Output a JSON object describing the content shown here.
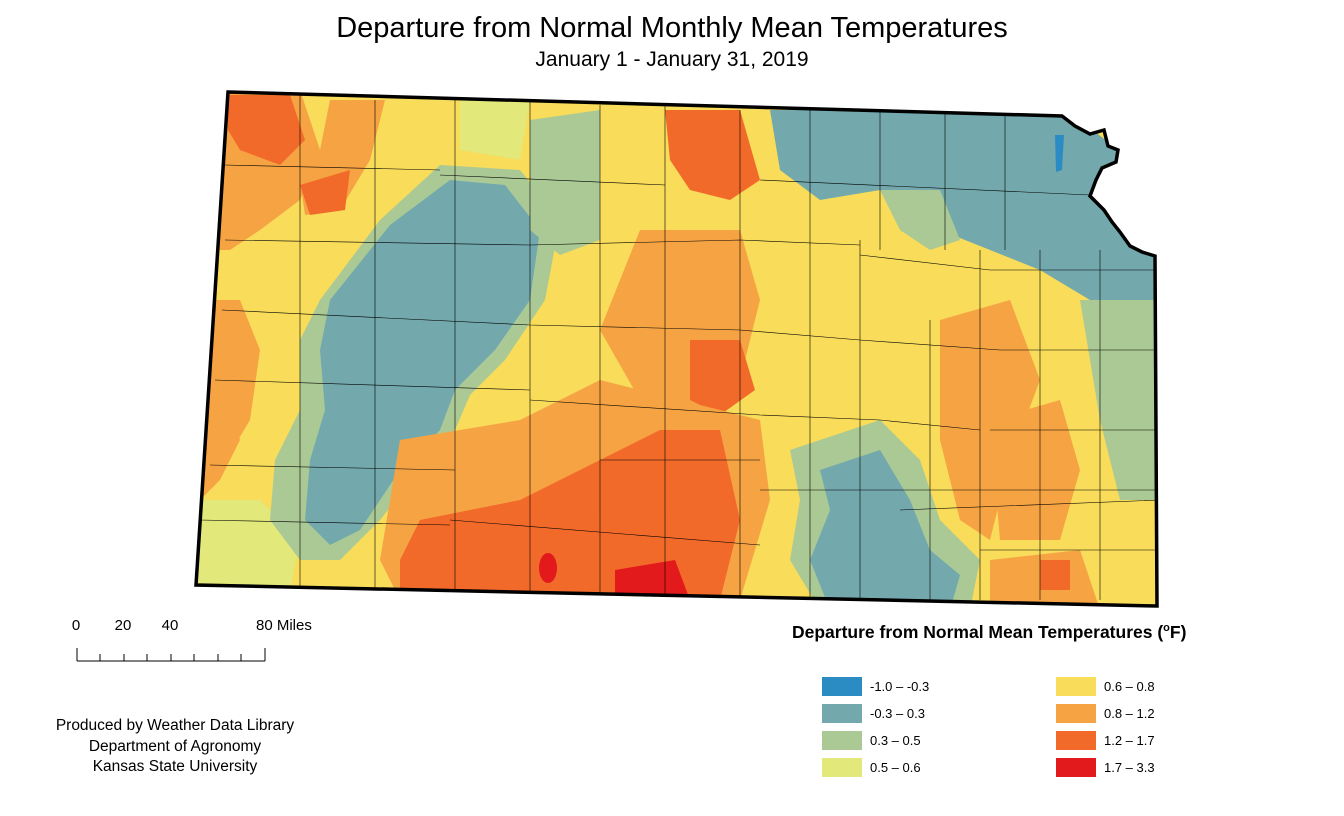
{
  "title": "Departure from Normal Monthly Mean Temperatures",
  "subtitle": "January 1 - January 31, 2019",
  "scale": {
    "ticks": [
      "0",
      "20",
      "40",
      "80 Miles"
    ]
  },
  "credits": {
    "line1": "Produced by Weather Data Library",
    "line2": "Department of Agronomy",
    "line3": "Kansas State University"
  },
  "legend": {
    "title": "Departure from Normal Mean Temperatures (",
    "unit_sup": "o",
    "unit_tail": "F)",
    "classes": [
      {
        "label": "-1.0 – -0.3",
        "color": "#2b8cc4"
      },
      {
        "label": "-0.3 – 0.3",
        "color": "#73a9ad"
      },
      {
        "label": "0.3 – 0.5",
        "color": "#abc994"
      },
      {
        "label": "0.5 – 0.6",
        "color": "#e2e87a"
      },
      {
        "label": "0.6 – 0.8",
        "color": "#f8dc5a"
      },
      {
        "label": "0.8 – 1.2",
        "color": "#f6a443"
      },
      {
        "label": "1.2 – 1.7",
        "color": "#f26a2a"
      },
      {
        "label": "1.7 – 3.3",
        "color": "#e31a1c"
      }
    ]
  }
}
